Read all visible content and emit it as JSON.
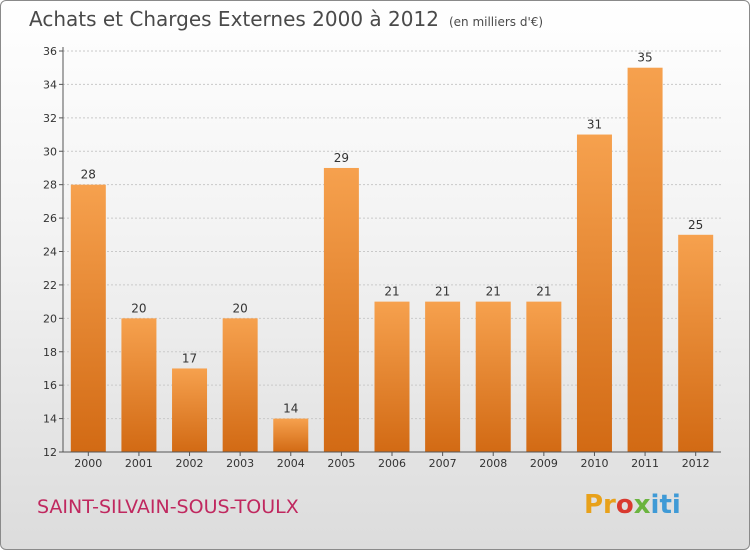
{
  "header": {
    "title": "Achats et Charges Externes 2000 à 2012",
    "subtitle": "(en milliers d'€)"
  },
  "footer": {
    "commune": "SAINT-SILVAIN-SOUS-TOULX",
    "logo_parts": [
      "Pr",
      "o",
      "x",
      "iti"
    ]
  },
  "colors": {
    "bar_light": "#f6a14e",
    "bar_dark": "#d26a14",
    "title_text": "#4a4a4a",
    "commune_text": "#c0285f"
  },
  "chart_data": {
    "type": "bar",
    "title": "Achats et Charges Externes 2000 à 2012",
    "subtitle": "(en milliers d'€)",
    "categories": [
      "2000",
      "2001",
      "2002",
      "2003",
      "2004",
      "2005",
      "2006",
      "2007",
      "2008",
      "2009",
      "2010",
      "2011",
      "2012"
    ],
    "values": [
      28,
      20,
      17,
      20,
      14,
      29,
      21,
      21,
      21,
      21,
      31,
      35,
      25
    ],
    "ylim": [
      12,
      36
    ],
    "yticks": [
      12,
      14,
      16,
      18,
      20,
      22,
      24,
      26,
      28,
      30,
      32,
      34,
      36
    ],
    "grid": true,
    "xlabel": "",
    "ylabel": ""
  }
}
